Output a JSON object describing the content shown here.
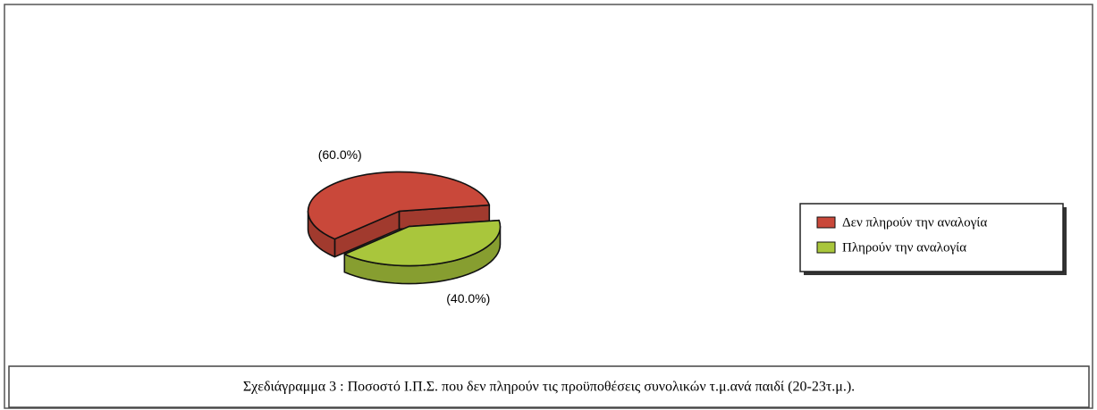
{
  "chart_data": {
    "type": "pie",
    "categories": [
      "Δεν πληρούν την αναλογία",
      "Πληρούν την αναλογία"
    ],
    "values": [
      60,
      40
    ],
    "value_labels": [
      "(60.0%)",
      "(40.0%)"
    ],
    "colors": [
      "#c9483a",
      "#a9c63c"
    ],
    "legend": "right",
    "caption": "Σχεδιάγραμμα 3 : Ποσοστό Ι.Π.Σ. που δεν πληρούν τις προϋποθέσεις συνολικών τ.μ.ανά παιδί (20-23τ.μ.)."
  }
}
